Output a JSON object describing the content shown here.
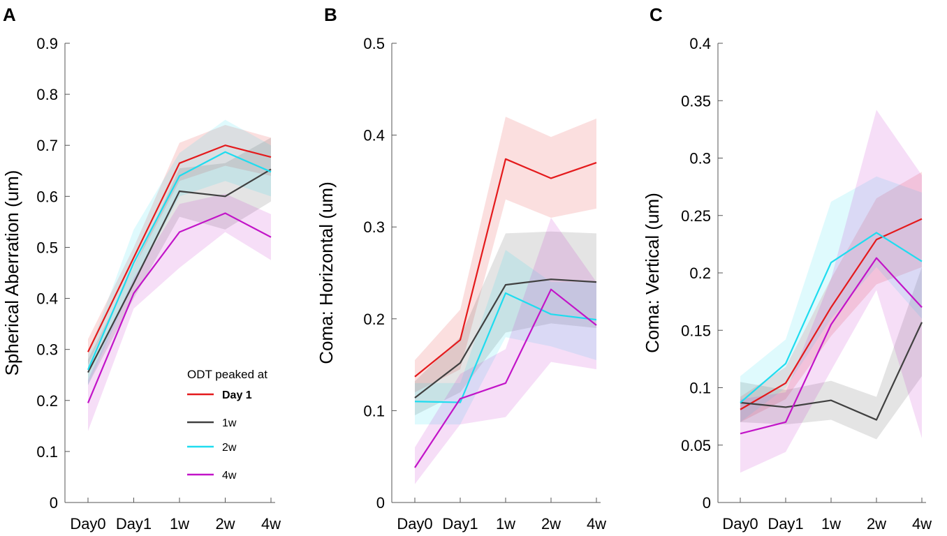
{
  "figure": {
    "legend_title": "ODT peaked at",
    "colors": {
      "Day 1": "#e41a1c",
      "1w": "#404040",
      "2w": "#1fdcef",
      "4w": "#c214c8"
    }
  },
  "chart_data": [
    {
      "panel": "A",
      "type": "line",
      "ylabel": "Spherical Aberration (um)",
      "categories": [
        "Day0",
        "Day1",
        "1w",
        "2w",
        "4w"
      ],
      "ylim": [
        0,
        0.9
      ],
      "yticks": [
        "0",
        "0.1",
        "0.2",
        "0.3",
        "0.4",
        "0.5",
        "0.6",
        "0.7",
        "0.8",
        "0.9"
      ],
      "legend": true,
      "series": [
        {
          "name": "Day 1",
          "values": [
            0.295,
            0.48,
            0.665,
            0.7,
            0.677
          ],
          "lower": [
            0.27,
            0.46,
            0.63,
            0.66,
            0.64
          ],
          "upper": [
            0.32,
            0.5,
            0.705,
            0.74,
            0.715
          ]
        },
        {
          "name": "1w",
          "values": [
            0.255,
            0.43,
            0.61,
            0.6,
            0.653
          ],
          "lower": [
            0.23,
            0.4,
            0.56,
            0.535,
            0.59
          ],
          "upper": [
            0.28,
            0.46,
            0.655,
            0.665,
            0.715
          ]
        },
        {
          "name": "2w",
          "values": [
            0.26,
            0.47,
            0.64,
            0.687,
            0.648
          ],
          "lower": [
            0.23,
            0.43,
            0.6,
            0.63,
            0.6
          ],
          "upper": [
            0.29,
            0.535,
            0.685,
            0.75,
            0.7
          ]
        },
        {
          "name": "4w",
          "values": [
            0.195,
            0.41,
            0.53,
            0.567,
            0.52
          ],
          "lower": [
            0.14,
            0.38,
            0.46,
            0.53,
            0.475
          ],
          "upper": [
            0.24,
            0.44,
            0.585,
            0.605,
            0.565
          ]
        }
      ]
    },
    {
      "panel": "B",
      "type": "line",
      "ylabel": "Coma: Horizontal (um)",
      "categories": [
        "Day0",
        "Day1",
        "1w",
        "2w",
        "4w"
      ],
      "ylim": [
        0,
        0.5
      ],
      "yticks": [
        "0",
        "0.1",
        "0.2",
        "0.3",
        "0.4",
        "0.5"
      ],
      "legend": false,
      "series": [
        {
          "name": "Day 1",
          "values": [
            0.137,
            0.177,
            0.374,
            0.353,
            0.37
          ],
          "lower": [
            0.12,
            0.145,
            0.33,
            0.31,
            0.32
          ],
          "upper": [
            0.155,
            0.21,
            0.42,
            0.398,
            0.418
          ]
        },
        {
          "name": "1w",
          "values": [
            0.114,
            0.152,
            0.237,
            0.243,
            0.24
          ],
          "lower": [
            0.095,
            0.12,
            0.185,
            0.195,
            0.19
          ],
          "upper": [
            0.132,
            0.18,
            0.293,
            0.295,
            0.293
          ]
        },
        {
          "name": "2w",
          "values": [
            0.11,
            0.109,
            0.228,
            0.205,
            0.199
          ],
          "lower": [
            0.085,
            0.085,
            0.18,
            0.17,
            0.155
          ],
          "upper": [
            0.13,
            0.13,
            0.275,
            0.24,
            0.24
          ]
        },
        {
          "name": "4w",
          "values": [
            0.038,
            0.113,
            0.13,
            0.232,
            0.193
          ],
          "lower": [
            0.02,
            0.085,
            0.093,
            0.153,
            0.145
          ],
          "upper": [
            0.06,
            0.14,
            0.167,
            0.31,
            0.24
          ]
        }
      ]
    },
    {
      "panel": "C",
      "type": "line",
      "ylabel": "Coma: Vertical (um)",
      "categories": [
        "Day0",
        "Day1",
        "1w",
        "2w",
        "4w"
      ],
      "ylim": [
        0,
        0.4
      ],
      "yticks": [
        "0",
        "0.05",
        "0.1",
        "0.15",
        "0.2",
        "0.25",
        "0.3",
        "0.35",
        "0.4"
      ],
      "legend": false,
      "series": [
        {
          "name": "Day 1",
          "values": [
            0.081,
            0.104,
            0.17,
            0.229,
            0.247
          ],
          "lower": [
            0.07,
            0.09,
            0.145,
            0.19,
            0.205
          ],
          "upper": [
            0.092,
            0.118,
            0.195,
            0.265,
            0.288
          ]
        },
        {
          "name": "1w",
          "values": [
            0.087,
            0.083,
            0.089,
            0.072,
            0.157
          ],
          "lower": [
            0.07,
            0.068,
            0.072,
            0.055,
            0.11
          ],
          "upper": [
            0.105,
            0.098,
            0.106,
            0.092,
            0.205
          ]
        },
        {
          "name": "2w",
          "values": [
            0.087,
            0.121,
            0.209,
            0.235,
            0.21
          ],
          "lower": [
            0.07,
            0.1,
            0.16,
            0.205,
            0.16
          ],
          "upper": [
            0.11,
            0.142,
            0.262,
            0.284,
            0.27
          ]
        },
        {
          "name": "4w",
          "values": [
            0.06,
            0.07,
            0.155,
            0.213,
            0.17
          ],
          "lower": [
            0.026,
            0.044,
            0.115,
            0.185,
            0.056
          ],
          "upper": [
            0.09,
            0.096,
            0.195,
            0.342,
            0.285
          ]
        }
      ]
    }
  ]
}
